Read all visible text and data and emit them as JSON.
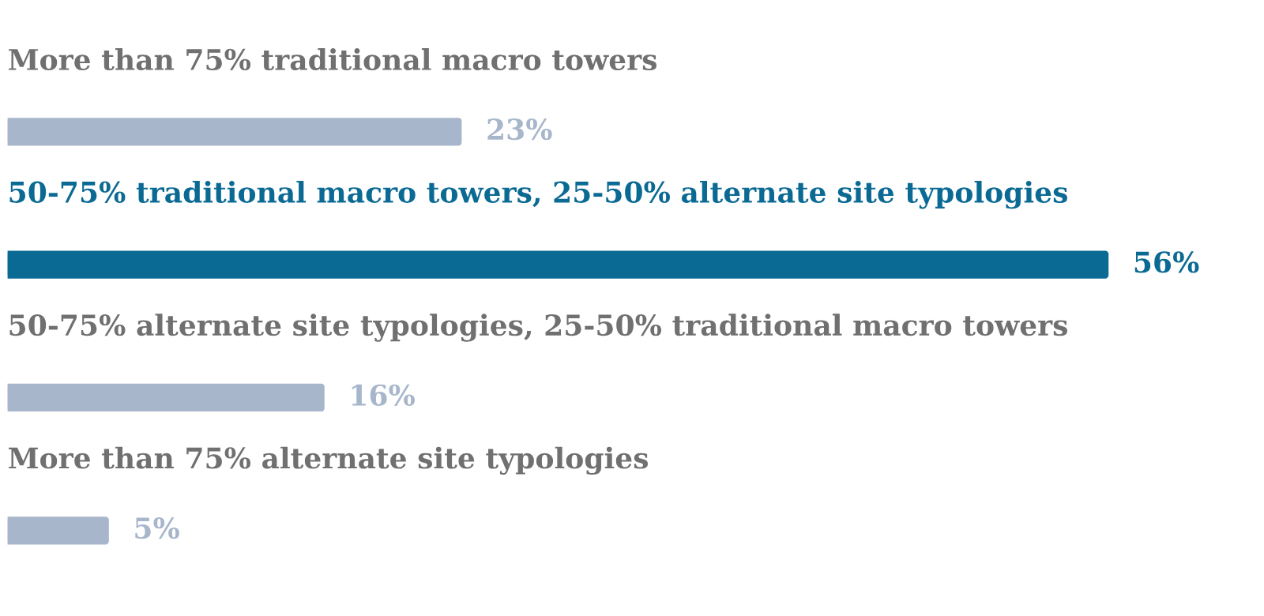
{
  "chart_data": {
    "type": "bar",
    "orientation": "horizontal",
    "categories": [
      "More than 75% traditional macro towers",
      "50-75% traditional macro towers, 25-50% alternate site typologies",
      "50-75% alternate site typologies, 25-50% traditional macro towers",
      "More than 75% alternate site typologies"
    ],
    "values": [
      23,
      56,
      16,
      5
    ],
    "value_labels": [
      "23%",
      "56%",
      "16%",
      "5%"
    ],
    "colors": [
      "#a8b6cb",
      "#0b6a94",
      "#a8b6cb",
      "#a8b6cb"
    ]
  }
}
